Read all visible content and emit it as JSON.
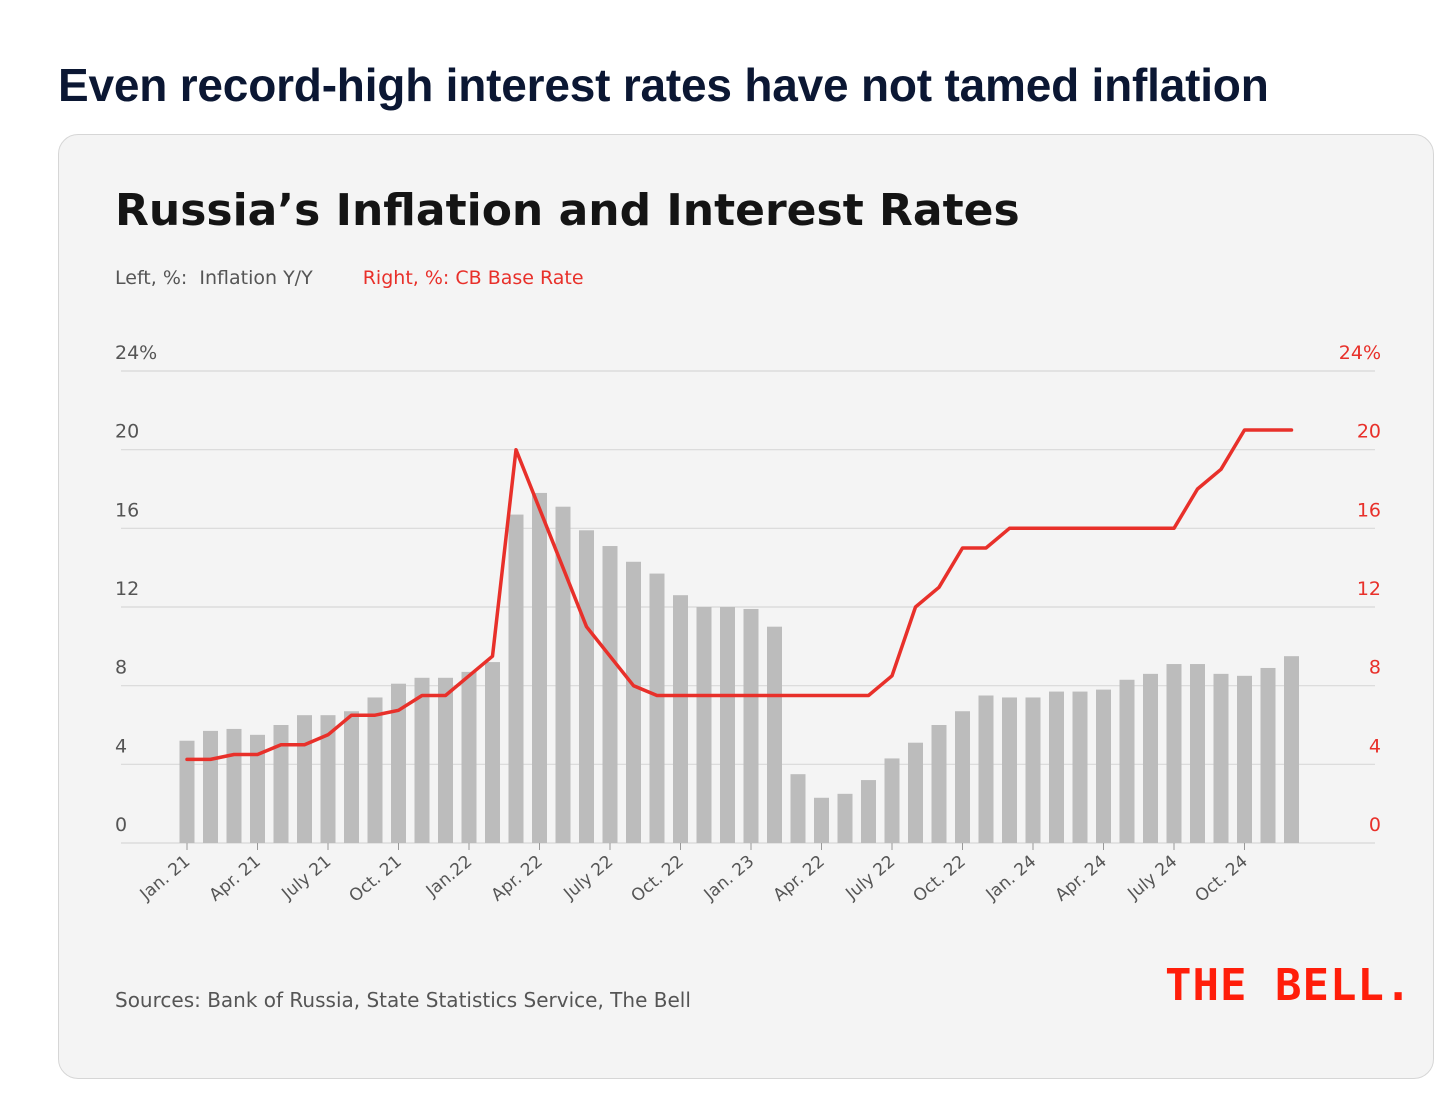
{
  "headline": "Even record-high interest rates have not tamed inflation",
  "sources": "Sources: Bank of Russia,  State Statistics Service, The Bell",
  "logo": "THE BELL.",
  "colors": {
    "bars": "#bcbcbc",
    "rate_line": "#e8302a",
    "accent_red": "#e8302a",
    "logo": "#ff1e0a",
    "headline": "#0b1733",
    "grid": "#d8d8d8",
    "axis_text": "#555555"
  },
  "chart_data": {
    "type": "bar+line",
    "title": "Russia’s Inflation and Interest Rates",
    "legend": {
      "left_prefix": "Left, %:",
      "left_name": "Inflation Y/Y",
      "right_prefix": "Right, %:",
      "right_name": "CB Base Rate"
    },
    "ylim": [
      0,
      24
    ],
    "y_ticks": [
      0,
      4,
      8,
      12,
      16,
      20,
      24
    ],
    "y_tick_labels": [
      "0",
      "4",
      "8",
      "12",
      "16",
      "20",
      "24%"
    ],
    "x_tick_labels": [
      "Jan. 21",
      "Apr. 21",
      "July 21",
      "Oct. 21",
      "Jan.22",
      "Apr. 22",
      "July 22",
      "Oct. 22",
      "Jan. 23",
      "Apr. 22",
      "July 22",
      "Oct. 22",
      "Jan. 24",
      "Apr. 24",
      "July 24",
      "Oct. 24"
    ],
    "x_tick_every": 3,
    "series": [
      {
        "name": "Inflation Y/Y",
        "axis": "left",
        "kind": "bar",
        "values": [
          5.2,
          5.7,
          5.8,
          5.5,
          6.0,
          6.5,
          6.5,
          6.7,
          7.4,
          8.1,
          8.4,
          8.4,
          8.7,
          9.2,
          16.7,
          17.8,
          17.1,
          15.9,
          15.1,
          14.3,
          13.7,
          12.6,
          12.0,
          12.0,
          11.9,
          11.0,
          3.5,
          2.3,
          2.5,
          3.2,
          4.3,
          5.1,
          6.0,
          6.7,
          7.5,
          7.4,
          7.4,
          7.7,
          7.7,
          7.8,
          8.3,
          8.6,
          9.1,
          9.1,
          8.6,
          8.5,
          8.9,
          9.5
        ]
      },
      {
        "name": "CB Base Rate",
        "axis": "right",
        "kind": "line",
        "values": [
          4.25,
          4.25,
          4.5,
          4.5,
          5.0,
          5.0,
          5.5,
          6.5,
          6.5,
          6.75,
          7.5,
          7.5,
          8.5,
          9.5,
          20.0,
          17.0,
          14.0,
          11.0,
          9.5,
          8.0,
          7.5,
          7.5,
          7.5,
          7.5,
          7.5,
          7.5,
          7.5,
          7.5,
          7.5,
          7.5,
          8.5,
          12.0,
          13.0,
          15.0,
          15.0,
          16.0,
          16.0,
          16.0,
          16.0,
          16.0,
          16.0,
          16.0,
          16.0,
          18.0,
          19.0,
          21.0,
          21.0,
          21.0
        ]
      }
    ]
  }
}
